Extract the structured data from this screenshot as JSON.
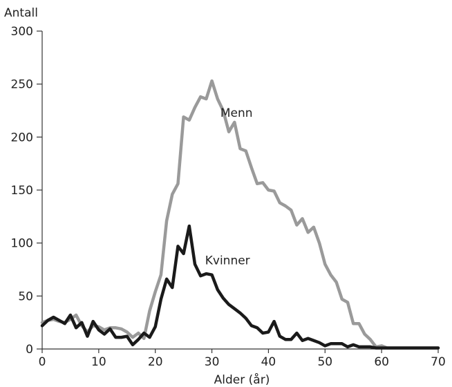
{
  "chart_data": {
    "type": "line",
    "title": "",
    "xlabel": "Alder (år)",
    "ylabel": "Antall",
    "xlim": [
      0,
      70
    ],
    "ylim": [
      0,
      300
    ],
    "xticks": [
      0,
      10,
      20,
      30,
      40,
      50,
      60,
      70
    ],
    "yticks": [
      0,
      50,
      100,
      150,
      200,
      250,
      300
    ],
    "grid": false,
    "series": [
      {
        "name": "Menn",
        "color": "#9a9a9a",
        "label_at": [
          31.5,
          219
        ],
        "x": [
          0,
          1,
          2,
          3,
          4,
          5,
          6,
          7,
          8,
          9,
          10,
          11,
          12,
          13,
          14,
          15,
          16,
          17,
          18,
          19,
          20,
          21,
          22,
          23,
          24,
          25,
          26,
          27,
          28,
          29,
          30,
          31,
          32,
          33,
          34,
          35,
          36,
          37,
          38,
          39,
          40,
          41,
          42,
          43,
          44,
          45,
          46,
          47,
          48,
          49,
          50,
          51,
          52,
          53,
          54,
          55,
          56,
          57,
          58,
          59,
          60,
          61,
          62,
          63,
          64,
          65,
          66,
          67,
          68,
          69,
          70
        ],
        "values": [
          25,
          27,
          28,
          26,
          25,
          28,
          32,
          22,
          16,
          22,
          21,
          18,
          20,
          20,
          19,
          16,
          11,
          15,
          10,
          36,
          54,
          70,
          121,
          146,
          156,
          219,
          216,
          228,
          238,
          236,
          253,
          236,
          225,
          205,
          214,
          189,
          187,
          171,
          156,
          157,
          150,
          149,
          138,
          135,
          131,
          117,
          123,
          110,
          115,
          100,
          80,
          70,
          63,
          47,
          44,
          24,
          24,
          14,
          9,
          2,
          3,
          1,
          1,
          1,
          1,
          1,
          1,
          1,
          1,
          1,
          1
        ]
      },
      {
        "name": "Kvinner",
        "color": "#1a1a1a",
        "label_at": [
          28.8,
          80
        ],
        "x": [
          0,
          1,
          2,
          3,
          4,
          5,
          6,
          7,
          8,
          9,
          10,
          11,
          12,
          13,
          14,
          15,
          16,
          17,
          18,
          19,
          20,
          21,
          22,
          23,
          24,
          25,
          26,
          27,
          28,
          29,
          30,
          31,
          32,
          33,
          34,
          35,
          36,
          37,
          38,
          39,
          40,
          41,
          42,
          43,
          44,
          45,
          46,
          47,
          48,
          49,
          50,
          51,
          52,
          53,
          54,
          55,
          56,
          57,
          58,
          59,
          60,
          61,
          62,
          63,
          64,
          65,
          66,
          67,
          68,
          69,
          70
        ],
        "values": [
          22,
          27,
          30,
          27,
          24,
          32,
          20,
          25,
          12,
          26,
          18,
          14,
          19,
          11,
          11,
          12,
          4,
          9,
          15,
          11,
          21,
          47,
          66,
          58,
          97,
          90,
          116,
          80,
          69,
          71,
          70,
          56,
          48,
          42,
          38,
          34,
          29,
          22,
          20,
          15,
          16,
          26,
          12,
          9,
          9,
          15,
          8,
          10,
          8,
          6,
          3,
          5,
          5,
          5,
          2,
          4,
          2,
          2,
          2,
          1,
          1,
          1,
          1,
          1,
          1,
          1,
          1,
          1,
          1,
          1,
          1
        ]
      }
    ]
  }
}
